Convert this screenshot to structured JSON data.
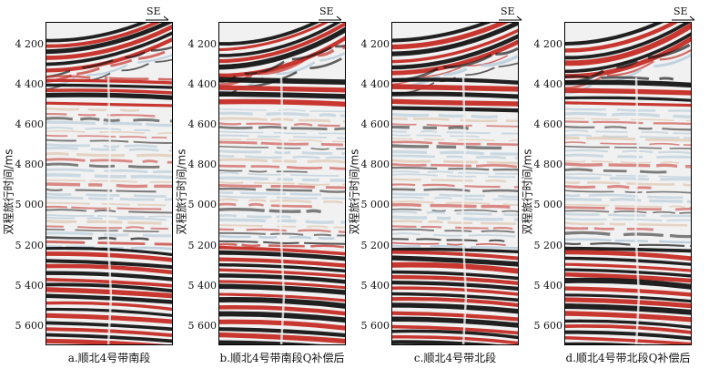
{
  "y_axis_label": "双程旅行时间/ms",
  "y_ticks": [
    "4 200",
    "4 400",
    "4 600",
    "4 800",
    "5 000",
    "5 200",
    "5 400",
    "5 600"
  ],
  "direction_label": "SE",
  "panels": [
    {
      "caption": "a.顺北4号带南段"
    },
    {
      "caption": "b.顺北4号带南段Q补偿后"
    },
    {
      "caption": "c.顺北4号带北段"
    },
    {
      "caption": "d.顺北4号带北段Q补偿后"
    }
  ],
  "colors": {
    "peak": "#c42b24",
    "trough": "#141414",
    "mid": "#f1f1f1",
    "weak_blue": "#a9c3d6",
    "weak_tan": "#d9b99a"
  }
}
